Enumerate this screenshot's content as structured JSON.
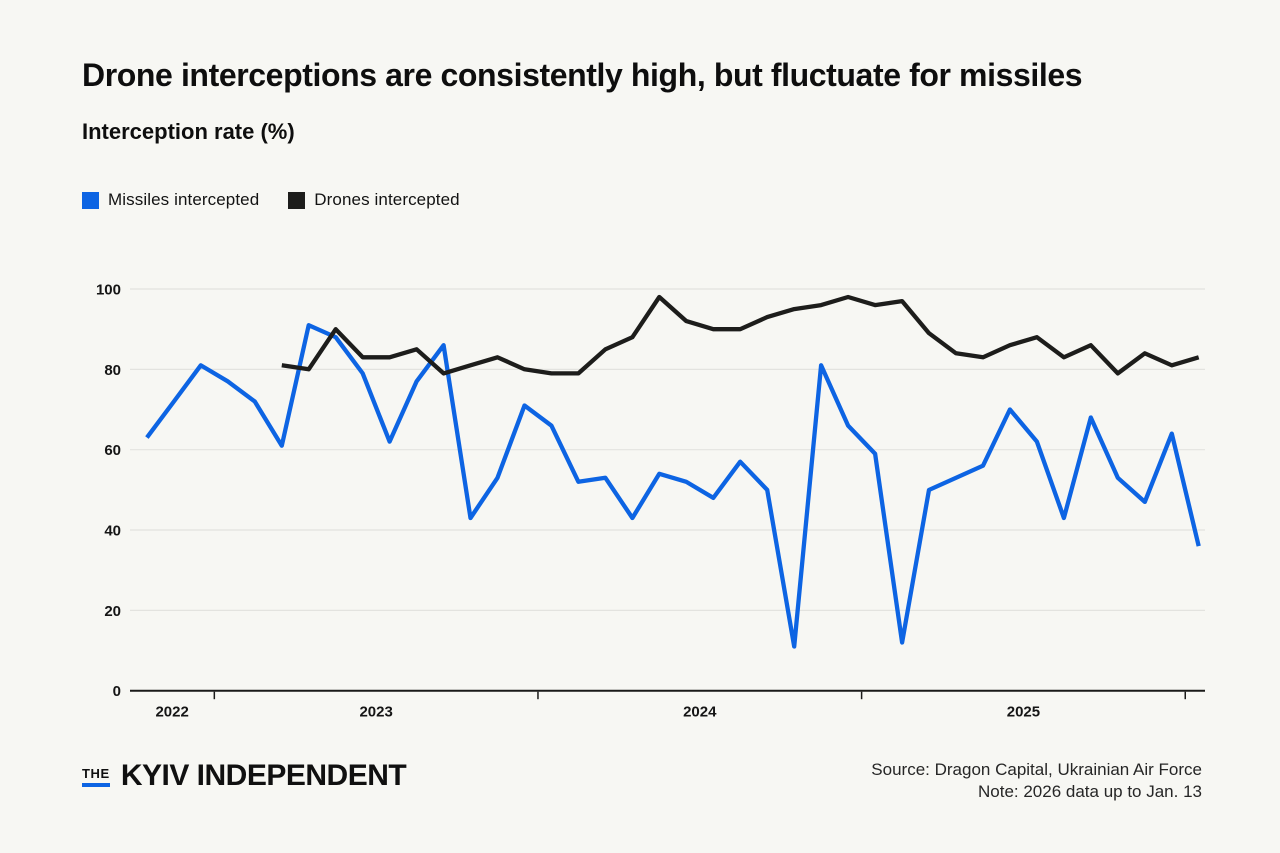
{
  "title": "Drone interceptions are consistently high, but fluctuate for missiles",
  "subtitle": "Interception rate (%)",
  "accent_color": "#0d64e3",
  "legend": [
    {
      "label": "Missiles intercepted",
      "color": "#0d64e3"
    },
    {
      "label": "Drones intercepted",
      "color": "#1d1d1b"
    }
  ],
  "chart_data": {
    "type": "line",
    "x_frequency": "monthly",
    "x_start": "2022-10",
    "x_end": "2026-01",
    "x": [
      "2022-10",
      "2022-11",
      "2022-12",
      "2023-01",
      "2023-02",
      "2023-03",
      "2023-04",
      "2023-05",
      "2023-06",
      "2023-07",
      "2023-08",
      "2023-09",
      "2023-10",
      "2023-11",
      "2023-12",
      "2024-01",
      "2024-02",
      "2024-03",
      "2024-04",
      "2024-05",
      "2024-06",
      "2024-07",
      "2024-08",
      "2024-09",
      "2024-10",
      "2024-11",
      "2024-12",
      "2025-01",
      "2025-02",
      "2025-03",
      "2025-04",
      "2025-05",
      "2025-06",
      "2025-07",
      "2025-08",
      "2025-09",
      "2025-10",
      "2025-11",
      "2025-12",
      "2026-01"
    ],
    "series": [
      {
        "name": "Missiles intercepted",
        "color": "#0d64e3",
        "values": [
          63,
          72,
          81,
          77,
          72,
          61,
          91,
          88,
          79,
          62,
          77,
          86,
          43,
          53,
          71,
          66,
          52,
          53,
          43,
          54,
          52,
          48,
          57,
          50,
          11,
          81,
          66,
          59,
          12,
          50,
          53,
          56,
          70,
          62,
          43,
          68,
          53,
          47,
          64,
          36
        ]
      },
      {
        "name": "Drones intercepted",
        "color": "#1d1d1b",
        "values": [
          null,
          null,
          null,
          null,
          null,
          81,
          80,
          90,
          83,
          83,
          85,
          79,
          81,
          83,
          80,
          79,
          79,
          85,
          88,
          98,
          92,
          90,
          90,
          93,
          95,
          96,
          98,
          96,
          97,
          89,
          84,
          83,
          86,
          88,
          83,
          86,
          79,
          84,
          81,
          83
        ]
      }
    ],
    "y_ticks": [
      "0",
      "20",
      "40",
      "60",
      "80",
      "100"
    ],
    "ylim": [
      0,
      100
    ],
    "x_axis_tick_labels": [
      "2022",
      "2023",
      "2024",
      "2025"
    ],
    "grid": "horizontal",
    "grid_color": "#e3e3df",
    "axis_color": "#1a1a19",
    "legend_position": "top-left"
  },
  "footer": {
    "logo_the": "THE",
    "logo_name": "KYIV INDEPENDENT",
    "source": "Source: Dragon Capital, Ukrainian Air Force",
    "note": "Note: 2026 data up to Jan. 13"
  }
}
